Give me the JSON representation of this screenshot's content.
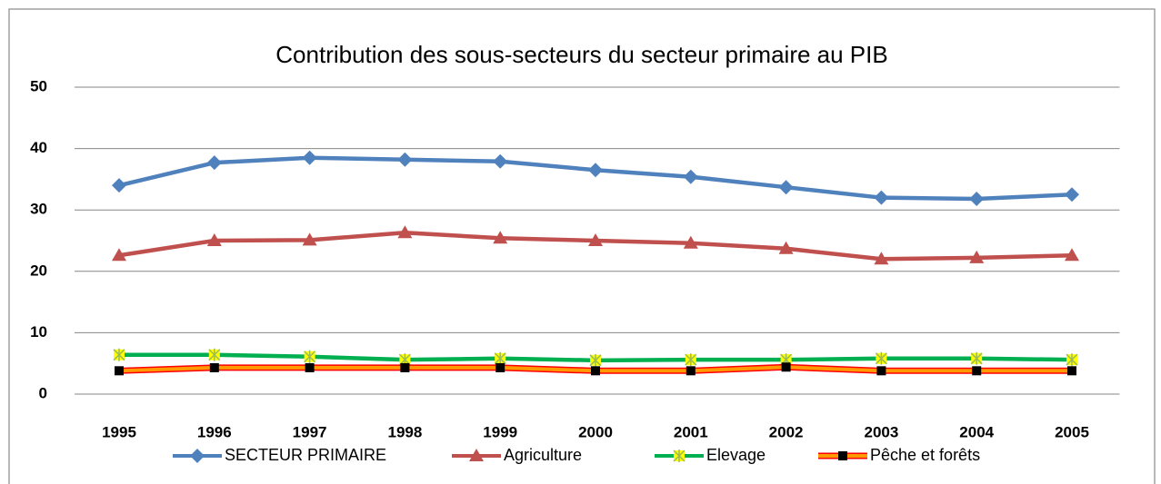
{
  "chart_data": {
    "type": "line",
    "title": "Contribution des sous-secteurs du secteur primaire  au PIB",
    "categories": [
      "1995",
      "1996",
      "1997",
      "1998",
      "1999",
      "2000",
      "2001",
      "2002",
      "2003",
      "2004",
      "2005"
    ],
    "series": [
      {
        "name": "SECTEUR PRIMAIRE",
        "color": "#4f81bd",
        "marker": "diamond",
        "values": [
          34.0,
          37.7,
          38.5,
          38.2,
          37.9,
          36.5,
          35.4,
          33.7,
          32.0,
          31.8,
          32.5
        ]
      },
      {
        "name": "Agriculture",
        "color": "#c0504d",
        "marker": "triangle",
        "values": [
          22.6,
          25.0,
          25.1,
          26.3,
          25.4,
          25.0,
          24.6,
          23.7,
          22.0,
          22.2,
          22.6
        ]
      },
      {
        "name": "Elevage",
        "color": "#00b050",
        "marker": "star",
        "values": [
          6.4,
          6.4,
          6.1,
          5.6,
          5.8,
          5.5,
          5.6,
          5.6,
          5.8,
          5.8,
          5.6
        ]
      },
      {
        "name": "Pêche et forêts",
        "color": "#ff9900",
        "marker": "square",
        "values": [
          3.8,
          4.3,
          4.3,
          4.3,
          4.3,
          3.8,
          3.8,
          4.4,
          3.8,
          3.8,
          3.8
        ]
      }
    ],
    "ylim": [
      0,
      50
    ],
    "yticks": [
      0,
      10,
      20,
      30,
      40,
      50
    ],
    "grid": true,
    "legend": "bottom"
  }
}
